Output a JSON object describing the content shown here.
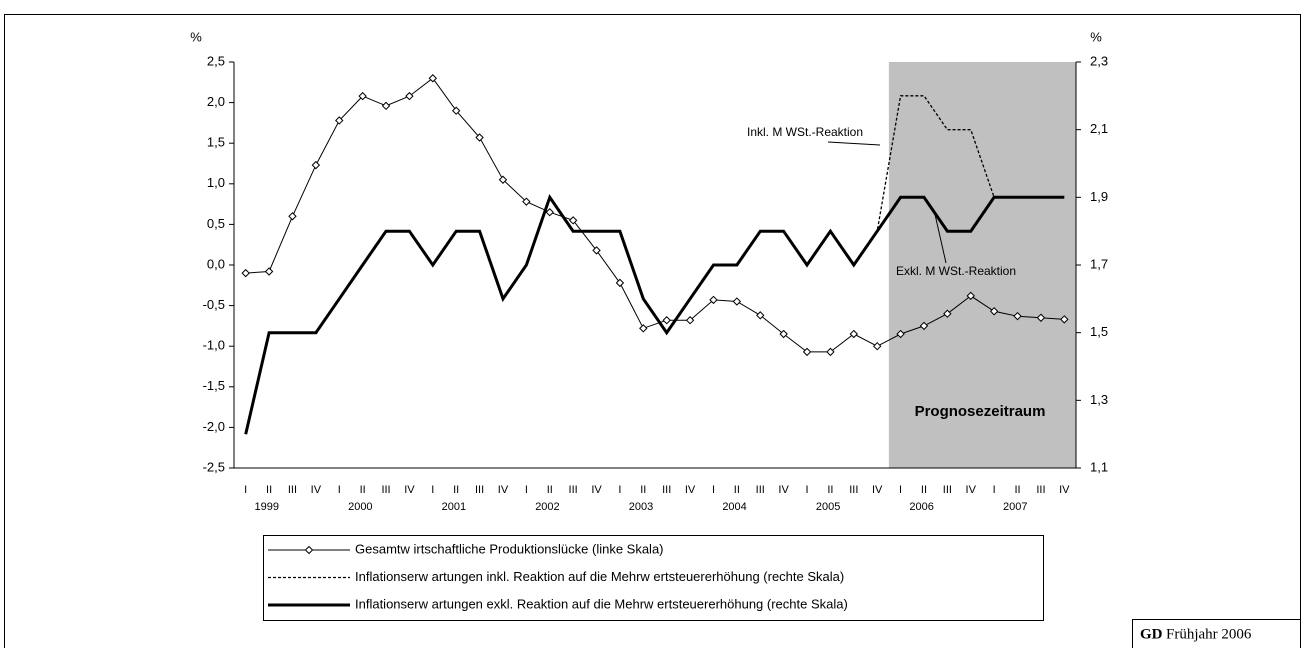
{
  "chart_data": {
    "type": "line",
    "y_unit": "%",
    "y2_unit": "%",
    "categories": [
      "I",
      "II",
      "III",
      "IV",
      "I",
      "II",
      "III",
      "IV",
      "I",
      "II",
      "III",
      "IV",
      "I",
      "II",
      "III",
      "IV",
      "I",
      "II",
      "III",
      "IV",
      "I",
      "II",
      "III",
      "IV",
      "I",
      "II",
      "III",
      "IV",
      "I",
      "II",
      "III",
      "IV",
      "I",
      "II",
      "III",
      "IV"
    ],
    "years": [
      "1999",
      "2000",
      "2001",
      "2002",
      "2003",
      "2004",
      "2005",
      "2006",
      "2007"
    ],
    "series": [
      {
        "name": "Gesamtw irtschaftliche Produktionslücke (linke Skala)",
        "color": "#000000",
        "line_style": "solid",
        "marker": "diamond",
        "axis": "y",
        "values": [
          -0.1,
          -0.08,
          0.6,
          1.23,
          1.78,
          2.08,
          1.96,
          2.08,
          2.3,
          1.9,
          1.57,
          1.05,
          0.78,
          0.65,
          0.55,
          0.18,
          -0.22,
          -0.78,
          -0.68,
          -0.68,
          -0.43,
          -0.45,
          -0.62,
          -0.85,
          -1.07,
          -1.07,
          -0.85,
          -1.0,
          -0.85,
          -0.75,
          -0.6,
          -0.38,
          -0.57,
          -0.63,
          -0.65,
          -0.67
        ]
      },
      {
        "name": "Inflationserw artungen inkl. Reaktion auf die Mehrw ertsteuererhöhung (rechte Skala)",
        "color": "#000000",
        "line_style": "dashed",
        "axis": "y2",
        "values": [
          1.2,
          1.5,
          1.5,
          1.5,
          1.6,
          1.7,
          1.8,
          1.8,
          1.7,
          1.8,
          1.8,
          1.6,
          1.7,
          1.9,
          1.8,
          1.8,
          1.8,
          1.6,
          1.5,
          1.6,
          1.7,
          1.7,
          1.8,
          1.8,
          1.7,
          1.8,
          1.7,
          1.8,
          2.2,
          2.2,
          2.1,
          2.1,
          1.9,
          1.9,
          1.9,
          1.9
        ]
      },
      {
        "name": "Inflationserw artungen exkl. Reaktion auf die Mehrw ertsteuererhöhung (rechte Skala)",
        "color": "#000000",
        "line_style": "thick",
        "axis": "y2",
        "values": [
          1.2,
          1.5,
          1.5,
          1.5,
          1.6,
          1.7,
          1.8,
          1.8,
          1.7,
          1.8,
          1.8,
          1.6,
          1.7,
          1.9,
          1.8,
          1.8,
          1.8,
          1.6,
          1.5,
          1.6,
          1.7,
          1.7,
          1.8,
          1.8,
          1.7,
          1.8,
          1.7,
          1.8,
          1.9,
          1.9,
          1.8,
          1.8,
          1.9,
          1.9,
          1.9,
          1.9
        ]
      }
    ],
    "ylim": [
      -2.5,
      2.5
    ],
    "yticks": [
      {
        "value": -2.5,
        "label": "-2,5"
      },
      {
        "value": -2.0,
        "label": "-2,0"
      },
      {
        "value": -1.5,
        "label": "-1,5"
      },
      {
        "value": -1.0,
        "label": "-1,0"
      },
      {
        "value": -0.5,
        "label": "-0,5"
      },
      {
        "value": 0,
        "label": "0,0"
      },
      {
        "value": 0.5,
        "label": "0,5"
      },
      {
        "value": 1.0,
        "label": "1,0"
      },
      {
        "value": 1.5,
        "label": "1,5"
      },
      {
        "value": 2.0,
        "label": "2,0"
      },
      {
        "value": 2.5,
        "label": "2,5"
      }
    ],
    "y2lim": [
      1.1,
      2.3
    ],
    "y2ticks": [
      {
        "value": 1.1,
        "label": "1,1"
      },
      {
        "value": 1.3,
        "label": "1,3"
      },
      {
        "value": 1.5,
        "label": "1,5"
      },
      {
        "value": 1.7,
        "label": "1,7"
      },
      {
        "value": 1.9,
        "label": "1,9"
      },
      {
        "value": 2.1,
        "label": "2,1"
      },
      {
        "value": 2.3,
        "label": "2,3"
      }
    ],
    "shaded_from_year": "2006",
    "shaded_label": "Prognosezeitraum",
    "annotations": [
      "Inkl. M WSt.-Reaktion",
      "Exkl. M WSt.-Reaktion"
    ],
    "source_bold": "GD",
    "source": "Frühjahr 2006"
  }
}
